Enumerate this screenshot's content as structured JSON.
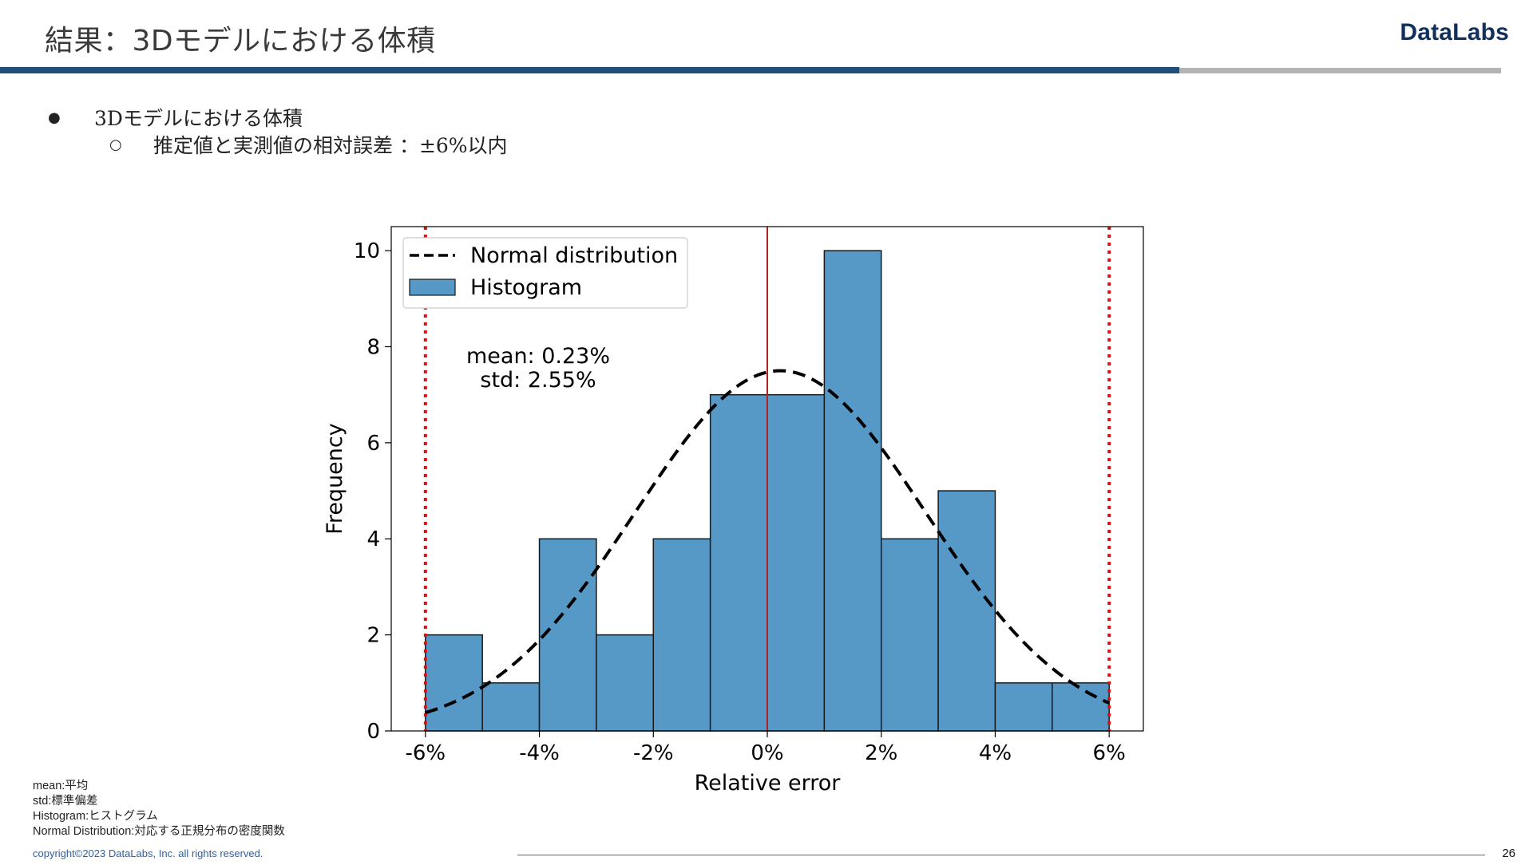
{
  "header": {
    "title": "結果：3Dモデルにおける体積",
    "brand": "DataLabs"
  },
  "bullets": {
    "main": "3Dモデルにおける体積",
    "sub": "推定値と実測値の相対誤差 ：±6%以内"
  },
  "chart_data": {
    "type": "bar",
    "xlabel": "Relative error",
    "ylabel": "Frequency",
    "xlim": [
      -6.6,
      6.6
    ],
    "ylim": [
      0,
      10.5
    ],
    "xticks": [
      -6,
      -4,
      -2,
      0,
      2,
      4,
      6
    ],
    "xtick_labels": [
      "-6%",
      "-4%",
      "-2%",
      "0%",
      "2%",
      "4%",
      "6%"
    ],
    "yticks": [
      0,
      2,
      4,
      6,
      8,
      10
    ],
    "ytick_labels": [
      "0",
      "2",
      "4",
      "6",
      "8",
      "10"
    ],
    "bin_edges": [
      -6,
      -5,
      -4,
      -3,
      -2,
      -1,
      0,
      1,
      2,
      3,
      4,
      5,
      6
    ],
    "values": [
      2,
      1,
      4,
      2,
      4,
      7,
      7,
      10,
      4,
      5,
      1,
      1
    ],
    "normal_curve": {
      "mean": 0.23,
      "std": 2.55,
      "peak": 7.5
    },
    "vlines": [
      {
        "x": -6,
        "style": "dotted",
        "color": "#dd1111"
      },
      {
        "x": 0,
        "style": "solid",
        "color": "#b22222"
      },
      {
        "x": 6,
        "style": "dotted",
        "color": "#dd1111"
      }
    ],
    "legend": {
      "position": "top-left",
      "entries": [
        {
          "label": "Normal distribution",
          "kind": "dashed-line"
        },
        {
          "label": "Histogram",
          "kind": "patch"
        }
      ]
    },
    "annotation": {
      "line1": "mean: 0.23%",
      "line2": "std: 2.55%"
    },
    "grid": false,
    "colors": {
      "bar_fill": "#5698c6",
      "bar_edge": "#1a1a1a",
      "curve": "#000000"
    }
  },
  "footnotes": [
    "mean:平均",
    "std:標準偏差",
    "Histogram:ヒストグラム",
    "Normal Distribution:対応する正規分布の密度関数"
  ],
  "footer": {
    "copyright": "copyright©2023 DataLabs, Inc. all rights reserved.",
    "page_number": "26"
  }
}
